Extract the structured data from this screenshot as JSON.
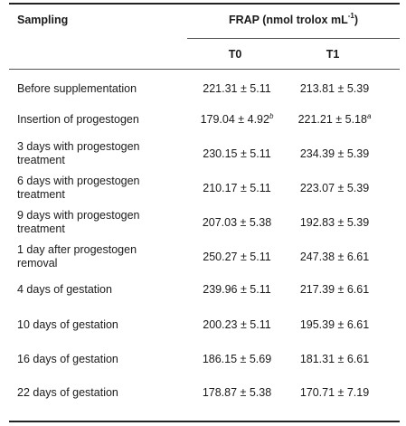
{
  "table": {
    "header": {
      "sampling": "Sampling",
      "frap_main": "FRAP (nmol trolox mL",
      "frap_exp": "-1",
      "frap_close": ")",
      "t0": "T0",
      "t1": "T1"
    },
    "rows": [
      {
        "label": [
          "Before supplementation"
        ],
        "t0": "221.31 ± 5.11",
        "t0_sup": "",
        "t1": "213.81 ± 5.39",
        "t1_sup": ""
      },
      {
        "label": [
          "Insertion of progestogen"
        ],
        "t0": "179.04 ± 4.92",
        "t0_sup": "b",
        "t1": "221.21 ± 5.18",
        "t1_sup": "a"
      },
      {
        "label": [
          "3 days with progestogen",
          "treatment"
        ],
        "t0": "230.15 ± 5.11",
        "t0_sup": "",
        "t1": "234.39 ± 5.39",
        "t1_sup": ""
      },
      {
        "label": [
          "6 days with progestogen",
          "treatment"
        ],
        "t0": "210.17 ± 5.11",
        "t0_sup": "",
        "t1": "223.07 ± 5.39",
        "t1_sup": ""
      },
      {
        "label": [
          "9 days with progestogen",
          "treatment"
        ],
        "t0": "207.03 ± 5.38",
        "t0_sup": "",
        "t1": "192.83 ± 5.39",
        "t1_sup": ""
      },
      {
        "label": [
          "1 day after progestogen",
          "removal"
        ],
        "t0": "250.27 ± 5.11",
        "t0_sup": "",
        "t1": "247.38 ± 6.61",
        "t1_sup": ""
      },
      {
        "label": [
          "4 days of gestation"
        ],
        "t0": "239.96 ± 5.11",
        "t0_sup": "",
        "t1": "217.39 ± 6.61",
        "t1_sup": ""
      },
      {
        "label": [
          "10 days of gestation"
        ],
        "t0": "200.23 ± 5.11",
        "t0_sup": "",
        "t1": "195.39 ± 6.61",
        "t1_sup": ""
      },
      {
        "label": [
          "16 days of gestation"
        ],
        "t0": "186.15 ± 5.69",
        "t0_sup": "",
        "t1": "181.31 ± 6.61",
        "t1_sup": ""
      },
      {
        "label": [
          "22 days of gestation"
        ],
        "t0": "178.87 ± 5.38",
        "t0_sup": "",
        "t1": "170.71 ± 7.19",
        "t1_sup": ""
      }
    ]
  }
}
